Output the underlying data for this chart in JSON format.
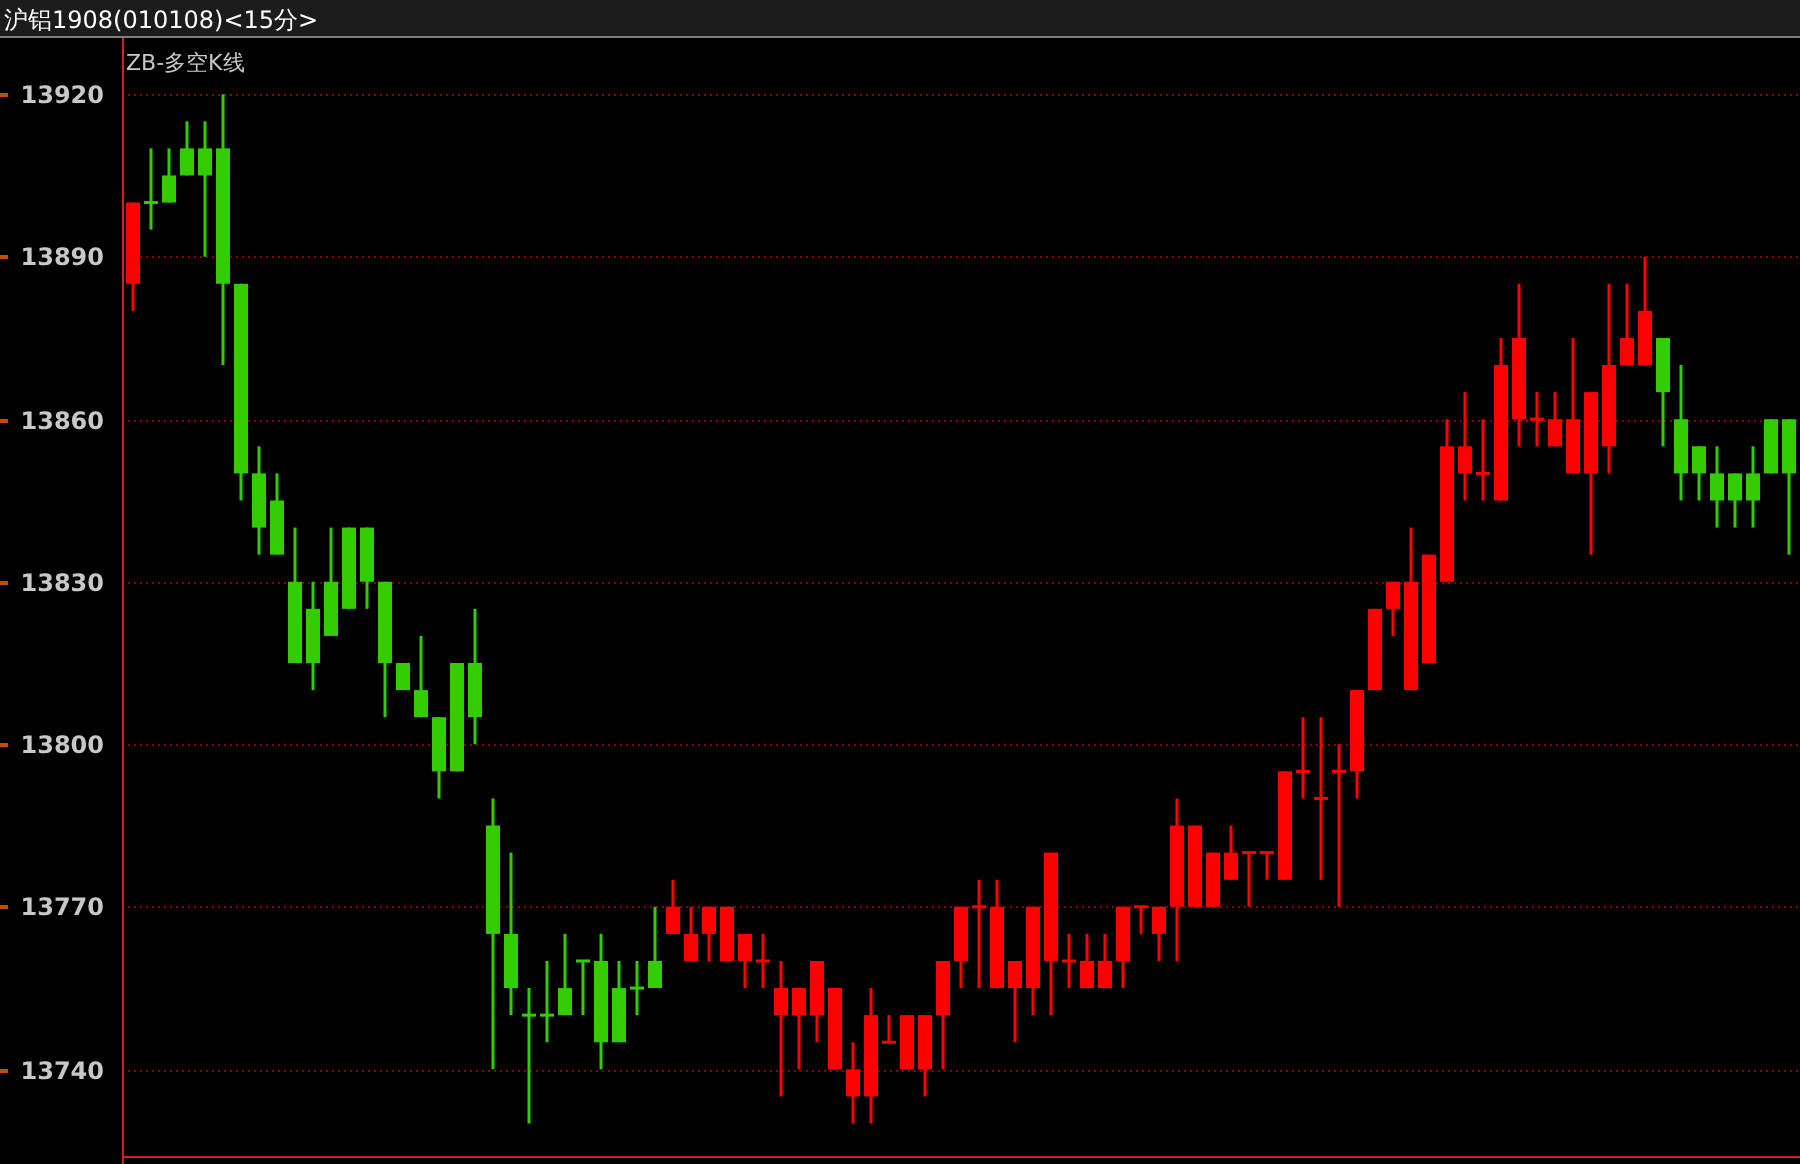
{
  "chart_data": {
    "type": "candlestick",
    "title": "沪铝1908(010108)<15分>",
    "subtitle": "ZB-多空K线",
    "categories": [
      null,
      null,
      null,
      null,
      null,
      null,
      null,
      null,
      null,
      null,
      null,
      null,
      null,
      null,
      null,
      null,
      null,
      null,
      null,
      null,
      null,
      null,
      null,
      null,
      null,
      null,
      null,
      null,
      null,
      null,
      null,
      null,
      null,
      null,
      null,
      null,
      null,
      null,
      null,
      null,
      null,
      null,
      null,
      null,
      null,
      null,
      null,
      null,
      null,
      null,
      null,
      null,
      null,
      null,
      null,
      null,
      null,
      null,
      null,
      null,
      null,
      null,
      null,
      null,
      null,
      null,
      null,
      null,
      null,
      null,
      null,
      null,
      null,
      null,
      null,
      null,
      null,
      null,
      null,
      null,
      null,
      null,
      null,
      null,
      null,
      null,
      null,
      null,
      null,
      null,
      null,
      null,
      null
    ],
    "ohlc": [
      [
        13885,
        13900,
        13880,
        13900
      ],
      [
        13900,
        13910,
        13895,
        13900
      ],
      [
        13905,
        13910,
        13900,
        13900
      ],
      [
        13910,
        13915,
        13905,
        13905
      ],
      [
        13910,
        13915,
        13890,
        13905
      ],
      [
        13910,
        13920,
        13870,
        13885
      ],
      [
        13885,
        13885,
        13845,
        13850
      ],
      [
        13850,
        13855,
        13835,
        13840
      ],
      [
        13845,
        13850,
        13835,
        13835
      ],
      [
        13830,
        13840,
        13815,
        13815
      ],
      [
        13825,
        13830,
        13810,
        13815
      ],
      [
        13830,
        13840,
        13820,
        13820
      ],
      [
        13840,
        13840,
        13825,
        13825
      ],
      [
        13840,
        13840,
        13825,
        13830
      ],
      [
        13830,
        13830,
        13805,
        13815
      ],
      [
        13815,
        13815,
        13810,
        13810
      ],
      [
        13810,
        13820,
        13805,
        13805
      ],
      [
        13805,
        13805,
        13790,
        13795
      ],
      [
        13815,
        13815,
        13795,
        13795
      ],
      [
        13815,
        13825,
        13800,
        13805
      ],
      [
        13785,
        13790,
        13740,
        13765
      ],
      [
        13765,
        13780,
        13750,
        13755
      ],
      [
        13750,
        13755,
        13730,
        13750
      ],
      [
        13750,
        13760,
        13745,
        13750
      ],
      [
        13755,
        13765,
        13750,
        13750
      ],
      [
        13760,
        13760,
        13750,
        13760
      ],
      [
        13760,
        13765,
        13740,
        13745
      ],
      [
        13755,
        13760,
        13745,
        13745
      ],
      [
        13755,
        13760,
        13750,
        13755
      ],
      [
        13760,
        13770,
        13755,
        13755
      ],
      [
        13765,
        13775,
        13765,
        13770
      ],
      [
        13760,
        13770,
        13760,
        13765
      ],
      [
        13765,
        13770,
        13760,
        13770
      ],
      [
        13760,
        13770,
        13760,
        13770
      ],
      [
        13760,
        13765,
        13755,
        13765
      ],
      [
        13760,
        13765,
        13755,
        13760
      ],
      [
        13750,
        13760,
        13735,
        13755
      ],
      [
        13750,
        13755,
        13740,
        13755
      ],
      [
        13750,
        13760,
        13745,
        13760
      ],
      [
        13740,
        13755,
        13740,
        13755
      ],
      [
        13735,
        13745,
        13730,
        13740
      ],
      [
        13735,
        13755,
        13730,
        13750
      ],
      [
        13745,
        13750,
        13745,
        13745
      ],
      [
        13740,
        13750,
        13740,
        13750
      ],
      [
        13740,
        13750,
        13735,
        13750
      ],
      [
        13750,
        13760,
        13740,
        13760
      ],
      [
        13760,
        13770,
        13755,
        13770
      ],
      [
        13770,
        13775,
        13755,
        13770
      ],
      [
        13755,
        13775,
        13755,
        13770
      ],
      [
        13755,
        13760,
        13745,
        13760
      ],
      [
        13755,
        13770,
        13750,
        13770
      ],
      [
        13760,
        13780,
        13750,
        13780
      ],
      [
        13760,
        13765,
        13755,
        13760
      ],
      [
        13755,
        13765,
        13755,
        13760
      ],
      [
        13755,
        13765,
        13755,
        13760
      ],
      [
        13760,
        13770,
        13755,
        13770
      ],
      [
        13770,
        13770,
        13765,
        13770
      ],
      [
        13765,
        13770,
        13760,
        13770
      ],
      [
        13770,
        13790,
        13760,
        13785
      ],
      [
        13770,
        13785,
        13770,
        13785
      ],
      [
        13770,
        13780,
        13770,
        13780
      ],
      [
        13775,
        13785,
        13775,
        13780
      ],
      [
        13780,
        13780,
        13770,
        13780
      ],
      [
        13780,
        13780,
        13775,
        13780
      ],
      [
        13775,
        13795,
        13775,
        13795
      ],
      [
        13795,
        13805,
        13790,
        13795
      ],
      [
        13790,
        13805,
        13775,
        13790
      ],
      [
        13795,
        13800,
        13770,
        13795
      ],
      [
        13795,
        13810,
        13790,
        13810
      ],
      [
        13810,
        13825,
        13810,
        13825
      ],
      [
        13825,
        13830,
        13820,
        13830
      ],
      [
        13810,
        13840,
        13810,
        13830
      ],
      [
        13815,
        13835,
        13815,
        13835
      ],
      [
        13830,
        13860,
        13830,
        13855
      ],
      [
        13850,
        13865,
        13845,
        13855
      ],
      [
        13850,
        13860,
        13845,
        13850
      ],
      [
        13845,
        13875,
        13845,
        13870
      ],
      [
        13860,
        13885,
        13855,
        13875
      ],
      [
        13860,
        13865,
        13855,
        13860
      ],
      [
        13855,
        13865,
        13855,
        13860
      ],
      [
        13850,
        13875,
        13850,
        13860
      ],
      [
        13850,
        13865,
        13835,
        13865
      ],
      [
        13855,
        13885,
        13850,
        13870
      ],
      [
        13870,
        13885,
        13870,
        13875
      ],
      [
        13870,
        13890,
        13870,
        13880
      ],
      [
        13875,
        13875,
        13855,
        13865
      ],
      [
        13860,
        13870,
        13845,
        13850
      ],
      [
        13855,
        13855,
        13845,
        13850
      ],
      [
        13850,
        13855,
        13840,
        13845
      ],
      [
        13850,
        13850,
        13840,
        13845
      ],
      [
        13850,
        13855,
        13840,
        13845
      ],
      [
        13860,
        13860,
        13850,
        13850
      ],
      [
        13860,
        13860,
        13835,
        13850
      ]
    ],
    "colors": [
      "#ff0000",
      "#33cc00",
      "#33cc00",
      "#33cc00",
      "#33cc00",
      "#33cc00",
      "#33cc00",
      "#33cc00",
      "#33cc00",
      "#33cc00",
      "#33cc00",
      "#33cc00",
      "#33cc00",
      "#33cc00",
      "#33cc00",
      "#33cc00",
      "#33cc00",
      "#33cc00",
      "#33cc00",
      "#33cc00",
      "#33cc00",
      "#33cc00",
      "#33cc00",
      "#33cc00",
      "#33cc00",
      "#33cc00",
      "#33cc00",
      "#33cc00",
      "#33cc00",
      "#33cc00",
      "#ff0000",
      "#ff0000",
      "#ff0000",
      "#ff0000",
      "#ff0000",
      "#ff0000",
      "#ff0000",
      "#ff0000",
      "#ff0000",
      "#ff0000",
      "#ff0000",
      "#ff0000",
      "#ff0000",
      "#ff0000",
      "#ff0000",
      "#ff0000",
      "#ff0000",
      "#ff0000",
      "#ff0000",
      "#ff0000",
      "#ff0000",
      "#ff0000",
      "#ff0000",
      "#ff0000",
      "#ff0000",
      "#ff0000",
      "#ff0000",
      "#ff0000",
      "#ff0000",
      "#ff0000",
      "#ff0000",
      "#ff0000",
      "#ff0000",
      "#ff0000",
      "#ff0000",
      "#ff0000",
      "#ff0000",
      "#ff0000",
      "#ff0000",
      "#ff0000",
      "#ff0000",
      "#ff0000",
      "#ff0000",
      "#ff0000",
      "#ff0000",
      "#ff0000",
      "#ff0000",
      "#ff0000",
      "#ff0000",
      "#ff0000",
      "#ff0000",
      "#ff0000",
      "#ff0000",
      "#ff0000",
      "#ff0000",
      "#33cc00",
      "#33cc00",
      "#33cc00",
      "#33cc00",
      "#33cc00",
      "#33cc00",
      "#33cc00",
      "#33cc00"
    ],
    "ylim": [
      13724,
      13930
    ],
    "yticks": [
      13740,
      13770,
      13800,
      13830,
      13860,
      13890,
      13920
    ],
    "grid": "y",
    "tick_labels": "y"
  }
}
